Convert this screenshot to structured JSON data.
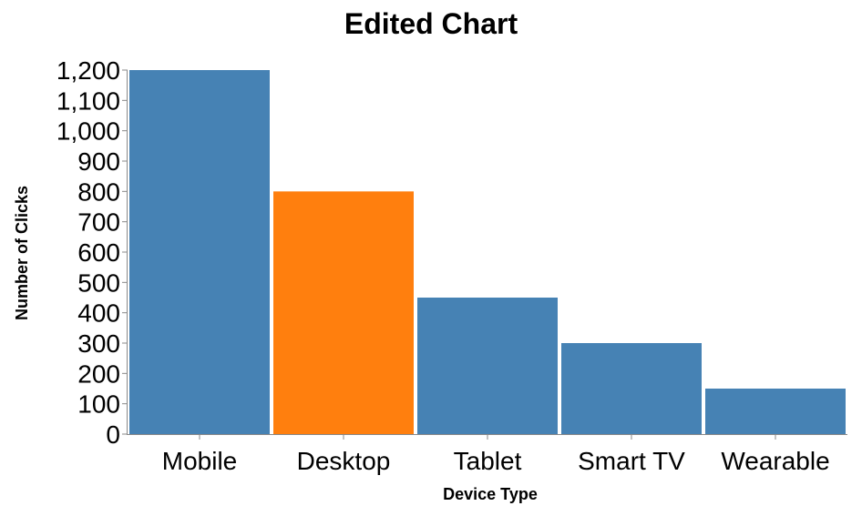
{
  "chart_data": {
    "type": "bar",
    "title": "Edited Chart",
    "xlabel": "Device Type",
    "ylabel": "Number of Clicks",
    "categories": [
      "Mobile",
      "Desktop",
      "Tablet",
      "Smart TV",
      "Wearable"
    ],
    "values": [
      1200,
      800,
      450,
      300,
      150
    ],
    "bar_colors": [
      "#4682b4",
      "#ff7f0e",
      "#4682b4",
      "#4682b4",
      "#4682b4"
    ],
    "ylim": [
      0,
      1200
    ],
    "yticks": [
      "0",
      "100",
      "200",
      "300",
      "400",
      "500",
      "600",
      "700",
      "800",
      "900",
      "1,000",
      "1,100",
      "1,200"
    ],
    "grid": false,
    "legend": "none"
  }
}
